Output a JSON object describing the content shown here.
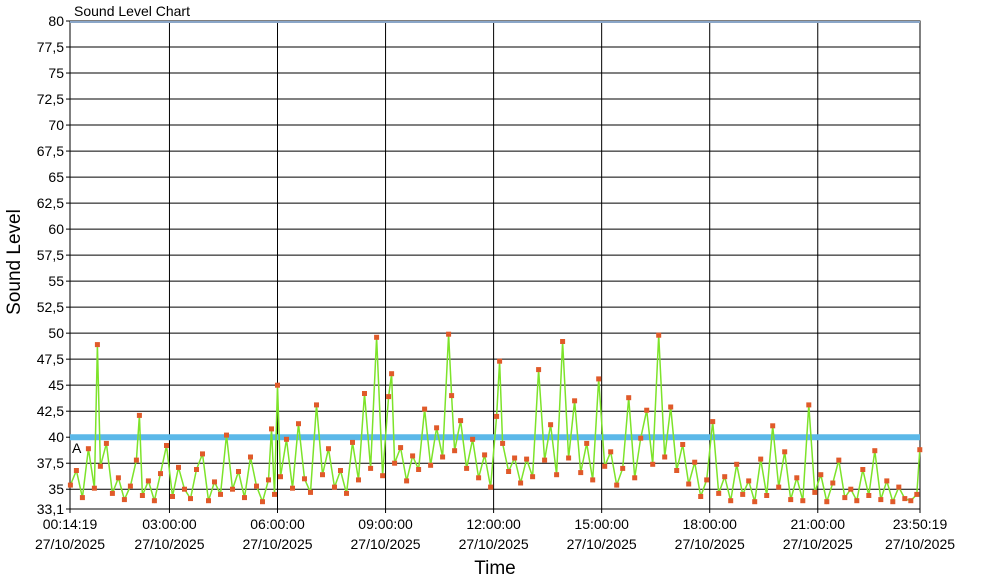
{
  "chart_data": {
    "type": "line",
    "title": "Sound Level Chart",
    "xlabel": "Time",
    "ylabel": "Sound Level",
    "ylim": [
      33.1,
      80
    ],
    "yticks": [
      33.1,
      35,
      37.5,
      40,
      42.5,
      45,
      47.5,
      50,
      52.5,
      55,
      57.5,
      60,
      62.5,
      65,
      67.5,
      70,
      72.5,
      75,
      77.5,
      80
    ],
    "ytick_labels": [
      "33,1",
      "35",
      "37,5",
      "40",
      "42,5",
      "45",
      "47,5",
      "50",
      "52,5",
      "55",
      "57,5",
      "60",
      "62,5",
      "65",
      "67,5",
      "70",
      "72,5",
      "75",
      "77,5",
      "80"
    ],
    "xlim": [
      "00:14:19",
      "23:50:19"
    ],
    "xticks": [
      {
        "time": "00:14:19",
        "date": "27/10/2025"
      },
      {
        "time": "03:00:00",
        "date": "27/10/2025"
      },
      {
        "time": "06:00:00",
        "date": "27/10/2025"
      },
      {
        "time": "09:00:00",
        "date": "27/10/2025"
      },
      {
        "time": "12:00:00",
        "date": "27/10/2025"
      },
      {
        "time": "15:00:00",
        "date": "27/10/2025"
      },
      {
        "time": "18:00:00",
        "date": "27/10/2025"
      },
      {
        "time": "21:00:00",
        "date": "27/10/2025"
      },
      {
        "time": "23:50:19",
        "date": "27/10/2025"
      }
    ],
    "grid": true,
    "threshold": {
      "label": "A",
      "value": 40,
      "color": "#5bb8e8"
    },
    "top_line": {
      "value": 80,
      "color": "#8aa6c8"
    },
    "series": [
      {
        "line_color": "#7de32a",
        "marker_color": "#e05a2a",
        "points": [
          [
            "00:15",
            35.4
          ],
          [
            "00:25",
            36.8
          ],
          [
            "00:35",
            34.2
          ],
          [
            "00:45",
            38.9
          ],
          [
            "00:55",
            35.1
          ],
          [
            "01:00",
            48.9
          ],
          [
            "01:05",
            37.2
          ],
          [
            "01:15",
            39.4
          ],
          [
            "01:25",
            34.6
          ],
          [
            "01:35",
            36.1
          ],
          [
            "01:45",
            34.0
          ],
          [
            "01:55",
            35.3
          ],
          [
            "02:05",
            37.8
          ],
          [
            "02:10",
            42.1
          ],
          [
            "02:15",
            34.4
          ],
          [
            "02:25",
            35.8
          ],
          [
            "02:35",
            33.9
          ],
          [
            "02:45",
            36.5
          ],
          [
            "02:55",
            39.2
          ],
          [
            "03:05",
            34.3
          ],
          [
            "03:15",
            37.1
          ],
          [
            "03:25",
            35.0
          ],
          [
            "03:35",
            34.1
          ],
          [
            "03:45",
            36.9
          ],
          [
            "03:55",
            38.4
          ],
          [
            "04:05",
            33.9
          ],
          [
            "04:15",
            35.7
          ],
          [
            "04:25",
            34.5
          ],
          [
            "04:35",
            40.2
          ],
          [
            "04:45",
            35.0
          ],
          [
            "04:55",
            36.7
          ],
          [
            "05:05",
            34.2
          ],
          [
            "05:15",
            38.1
          ],
          [
            "05:25",
            35.3
          ],
          [
            "05:35",
            33.8
          ],
          [
            "05:45",
            35.9
          ],
          [
            "05:50",
            40.8
          ],
          [
            "05:55",
            34.5
          ],
          [
            "06:00",
            45.0
          ],
          [
            "06:05",
            36.2
          ],
          [
            "06:15",
            39.8
          ],
          [
            "06:25",
            35.1
          ],
          [
            "06:35",
            41.3
          ],
          [
            "06:45",
            36.0
          ],
          [
            "06:55",
            34.7
          ],
          [
            "07:05",
            43.1
          ],
          [
            "07:15",
            36.4
          ],
          [
            "07:25",
            38.9
          ],
          [
            "07:35",
            35.2
          ],
          [
            "07:45",
            36.8
          ],
          [
            "07:55",
            34.6
          ],
          [
            "08:05",
            39.5
          ],
          [
            "08:15",
            35.9
          ],
          [
            "08:25",
            44.2
          ],
          [
            "08:35",
            37.0
          ],
          [
            "08:45",
            49.6
          ],
          [
            "08:55",
            36.3
          ],
          [
            "09:05",
            43.9
          ],
          [
            "09:10",
            46.1
          ],
          [
            "09:15",
            37.5
          ],
          [
            "09:25",
            39.0
          ],
          [
            "09:35",
            35.8
          ],
          [
            "09:45",
            38.2
          ],
          [
            "09:55",
            36.9
          ],
          [
            "10:05",
            42.7
          ],
          [
            "10:15",
            37.3
          ],
          [
            "10:25",
            40.9
          ],
          [
            "10:35",
            38.1
          ],
          [
            "10:45",
            49.9
          ],
          [
            "10:50",
            44.0
          ],
          [
            "10:55",
            38.7
          ],
          [
            "11:05",
            41.6
          ],
          [
            "11:15",
            37.0
          ],
          [
            "11:25",
            39.8
          ],
          [
            "11:35",
            36.1
          ],
          [
            "11:45",
            38.3
          ],
          [
            "11:55",
            35.2
          ],
          [
            "12:05",
            42.0
          ],
          [
            "12:10",
            47.3
          ],
          [
            "12:15",
            39.4
          ],
          [
            "12:25",
            36.7
          ],
          [
            "12:35",
            38.0
          ],
          [
            "12:45",
            35.6
          ],
          [
            "12:55",
            37.9
          ],
          [
            "13:05",
            36.2
          ],
          [
            "13:15",
            46.5
          ],
          [
            "13:25",
            37.8
          ],
          [
            "13:35",
            41.2
          ],
          [
            "13:45",
            36.4
          ],
          [
            "13:55",
            49.2
          ],
          [
            "14:05",
            38.0
          ],
          [
            "14:15",
            43.5
          ],
          [
            "14:25",
            36.6
          ],
          [
            "14:35",
            39.4
          ],
          [
            "14:45",
            35.9
          ],
          [
            "14:55",
            45.6
          ],
          [
            "15:05",
            37.2
          ],
          [
            "15:15",
            38.6
          ],
          [
            "15:25",
            35.4
          ],
          [
            "15:35",
            37.0
          ],
          [
            "15:45",
            43.8
          ],
          [
            "15:55",
            36.1
          ],
          [
            "16:05",
            39.9
          ],
          [
            "16:15",
            42.6
          ],
          [
            "16:25",
            37.4
          ],
          [
            "16:35",
            49.8
          ],
          [
            "16:45",
            38.1
          ],
          [
            "16:55",
            42.9
          ],
          [
            "17:05",
            36.8
          ],
          [
            "17:15",
            39.3
          ],
          [
            "17:25",
            35.5
          ],
          [
            "17:35",
            37.6
          ],
          [
            "17:45",
            34.3
          ],
          [
            "17:55",
            35.9
          ],
          [
            "18:05",
            41.5
          ],
          [
            "18:15",
            34.6
          ],
          [
            "18:25",
            36.2
          ],
          [
            "18:35",
            33.9
          ],
          [
            "18:45",
            37.4
          ],
          [
            "18:55",
            34.5
          ],
          [
            "19:05",
            35.8
          ],
          [
            "19:15",
            33.8
          ],
          [
            "19:25",
            37.9
          ],
          [
            "19:35",
            34.4
          ],
          [
            "19:45",
            41.1
          ],
          [
            "19:55",
            35.2
          ],
          [
            "20:05",
            38.6
          ],
          [
            "20:15",
            34.0
          ],
          [
            "20:25",
            36.1
          ],
          [
            "20:35",
            33.9
          ],
          [
            "20:45",
            43.1
          ],
          [
            "20:55",
            34.7
          ],
          [
            "21:05",
            36.4
          ],
          [
            "21:15",
            33.8
          ],
          [
            "21:25",
            35.6
          ],
          [
            "21:35",
            37.8
          ],
          [
            "21:45",
            34.2
          ],
          [
            "21:55",
            35.0
          ],
          [
            "22:05",
            33.9
          ],
          [
            "22:15",
            36.9
          ],
          [
            "22:25",
            34.4
          ],
          [
            "22:35",
            38.7
          ],
          [
            "22:45",
            34.0
          ],
          [
            "22:55",
            35.8
          ],
          [
            "23:05",
            33.8
          ],
          [
            "23:15",
            35.2
          ],
          [
            "23:25",
            34.1
          ],
          [
            "23:35",
            33.9
          ],
          [
            "23:45",
            34.5
          ],
          [
            "23:50",
            38.8
          ]
        ]
      }
    ]
  }
}
